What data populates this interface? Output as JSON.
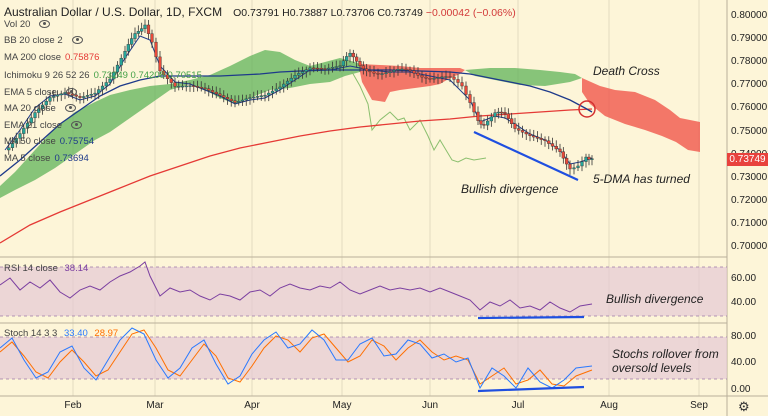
{
  "header": {
    "title": "Australian Dollar / U.S. Dollar, 1D, FXCM",
    "open": "O0.73791",
    "high": "H0.73887",
    "low": "L0.73706",
    "close": "C0.73749",
    "change": "−0.00042 (−0.06%)"
  },
  "indicators": [
    {
      "label": "Vol 20",
      "value": "",
      "color": "#555555"
    },
    {
      "label": "BB 20 close 2",
      "value": "",
      "color": "#555555"
    },
    {
      "label": "MA 200 close",
      "value": "0.75876",
      "color": "#e53935"
    },
    {
      "label": "Ichimoku 9 26 52 26",
      "value": "0.73249  0.74208  0.70515",
      "color": "#43a047"
    },
    {
      "label": "EMA 5 close",
      "value": "",
      "color": "#555555"
    },
    {
      "label": "MA 20 close",
      "value": "",
      "color": "#555555"
    },
    {
      "label": "EMA 21 close",
      "value": "",
      "color": "#555555"
    },
    {
      "label": "MA 50 close",
      "value": "0.75754",
      "color": "#1e3a8a"
    },
    {
      "label": "MA 5 close",
      "value": "0.73694",
      "color": "#1e3a8a"
    }
  ],
  "price_axis": [
    "0.80000",
    "0.79000",
    "0.78000",
    "0.77000",
    "0.76000",
    "0.75000",
    "0.74000",
    "0.73000",
    "0.72000",
    "0.71000",
    "0.70000"
  ],
  "current_price": "0.73749",
  "x_axis": [
    "Feb",
    "Mar",
    "Apr",
    "May",
    "Jun",
    "Jul",
    "Aug",
    "Sep"
  ],
  "rsi": {
    "label": "RSI 14 close",
    "value": "38.14",
    "axis": [
      "60.00",
      "40.00"
    ]
  },
  "stoch": {
    "label": "Stoch 14 3 3",
    "k": "33.40",
    "d": "28.97",
    "axis": [
      "80.00",
      "40.00",
      "0.00"
    ]
  },
  "annotations": {
    "death_cross": "Death Cross",
    "bullish_divergence": "Bullish divergence",
    "dma_turned": "5-DMA has turned",
    "rsi_divergence": "Bullish divergence",
    "stoch_line1": "Stochs rollover from",
    "stoch_line2": "oversold levels"
  },
  "colors": {
    "up": "#26a69a",
    "down": "#e84a3a",
    "cloud_bull": "#4caf50",
    "cloud_bear": "#f44336",
    "ma200": "#e53935",
    "ma50": "#1e3a8a",
    "rsi": "#7b3fa0",
    "stoch_k": "#2979ff",
    "stoch_d": "#ff6f00",
    "divergence": "#1f4fe0"
  }
}
